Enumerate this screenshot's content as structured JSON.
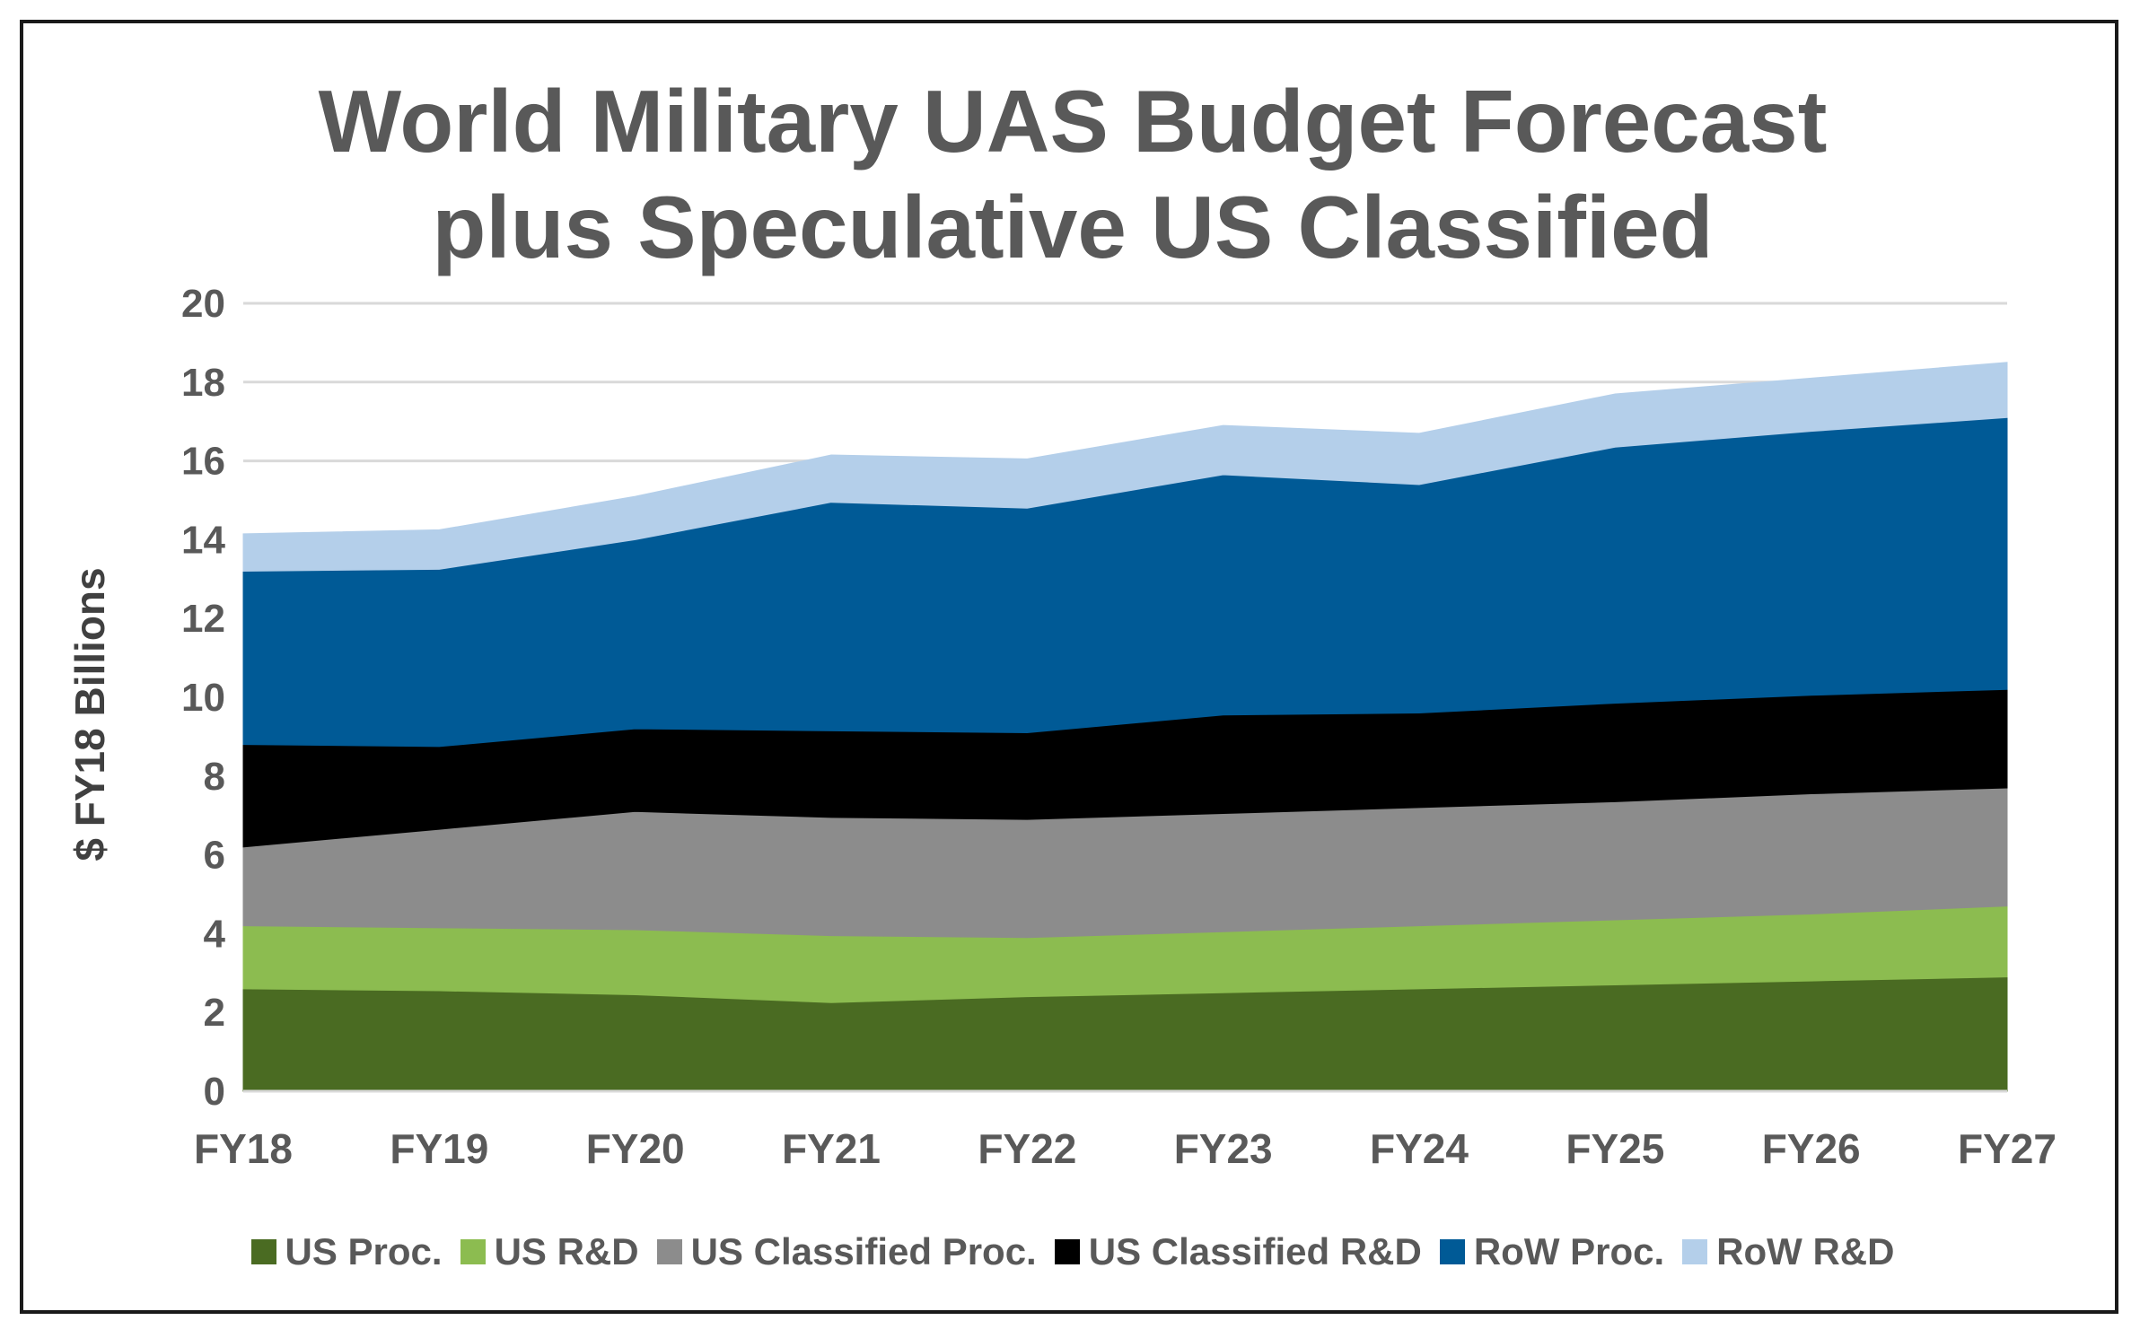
{
  "chart_data": {
    "type": "area",
    "stacked": true,
    "title": [
      "World Military UAS Budget Forecast",
      "plus Speculative US Classified"
    ],
    "ylabel": "$ FY18 Billions",
    "xlabel": "",
    "ylim": [
      0,
      20
    ],
    "yticks": [
      0,
      2,
      4,
      6,
      8,
      10,
      12,
      14,
      16,
      18,
      20
    ],
    "grid": true,
    "legend_position": "bottom",
    "categories": [
      "FY18",
      "FY19",
      "FY20",
      "FY21",
      "FY22",
      "FY23",
      "FY24",
      "FY25",
      "FY26",
      "FY27"
    ],
    "series": [
      {
        "name": "US Proc.",
        "color": "#4a6b22",
        "values": [
          2.6,
          2.55,
          2.45,
          2.25,
          2.4,
          2.5,
          2.6,
          2.7,
          2.8,
          2.9
        ]
      },
      {
        "name": "US R&D",
        "color": "#8cbc50",
        "values": [
          1.6,
          1.6,
          1.65,
          1.7,
          1.5,
          1.55,
          1.6,
          1.65,
          1.7,
          1.8
        ]
      },
      {
        "name": "US Classified Proc.",
        "color": "#8c8c8c",
        "values": [
          2.0,
          2.5,
          3.0,
          3.0,
          3.0,
          3.0,
          3.0,
          3.0,
          3.05,
          3.0
        ]
      },
      {
        "name": "US Classified R&D",
        "color": "#000000",
        "values": [
          2.6,
          2.1,
          2.1,
          2.2,
          2.2,
          2.5,
          2.4,
          2.5,
          2.5,
          2.5
        ]
      },
      {
        "name": "RoW Proc.",
        "color": "#005a96",
        "values": [
          4.4,
          4.5,
          4.8,
          5.8,
          5.7,
          6.1,
          5.8,
          6.5,
          6.7,
          6.9
        ]
      },
      {
        "name": "RoW R&D",
        "color": "#b4cfea",
        "values": [
          0.95,
          1.0,
          1.1,
          1.2,
          1.25,
          1.25,
          1.3,
          1.35,
          1.35,
          1.4
        ]
      }
    ]
  }
}
